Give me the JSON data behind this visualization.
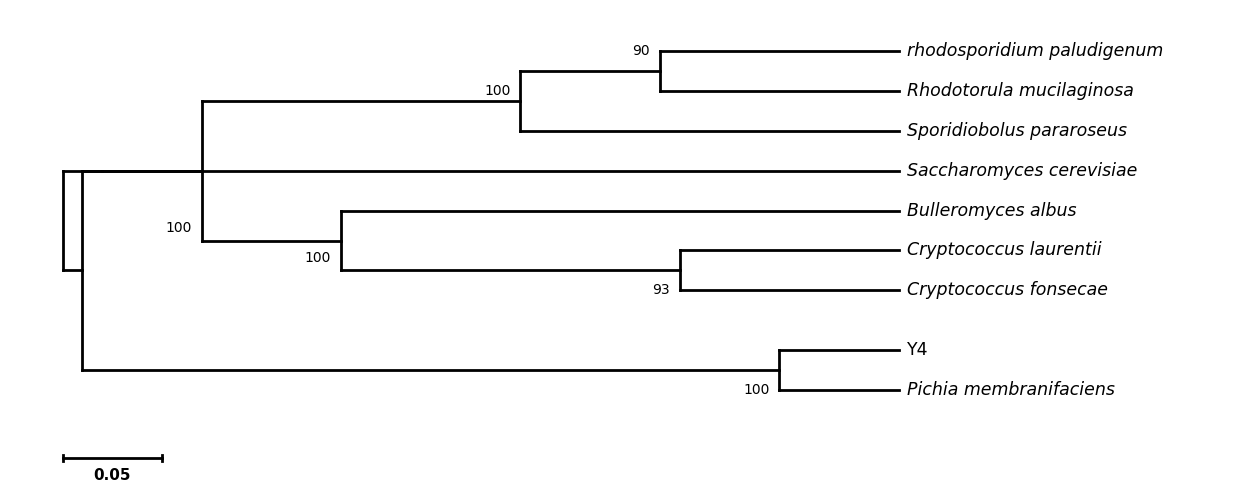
{
  "taxa": [
    "rhodosporidium paludigenum",
    "Rhodotorula mucilaginosa",
    "Sporidiobolus pararoseus",
    "Bulleromyces albus",
    "Cryptococcus laurentii",
    "Cryptococcus fonsecae",
    "Saccharomyces cerevisiae",
    "Y4",
    "Pichia membranifaciens"
  ],
  "taxa_italic": [
    true,
    true,
    true,
    true,
    true,
    true,
    true,
    false,
    true
  ],
  "taxa_y": [
    9,
    8,
    7,
    5,
    4,
    3,
    6.0,
    1.5,
    0.5
  ],
  "background_color": "#ffffff",
  "line_color": "#000000",
  "text_color": "#000000",
  "lw": 2.0,
  "scale_bar_label": "0.05"
}
